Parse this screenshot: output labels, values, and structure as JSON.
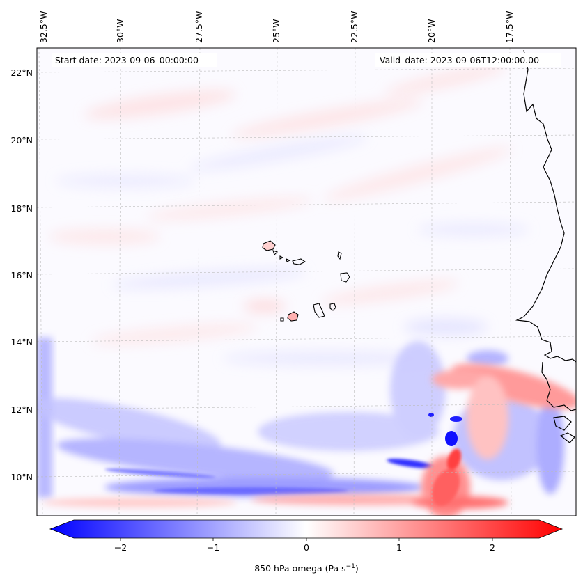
{
  "map": {
    "start_date": "Start date: 2023-09-06_00:00:00",
    "valid_date": "Valid_date: 2023-09-06T12:00:00.00",
    "lon_ticks": [
      "32.5°W",
      "30°W",
      "27.5°W",
      "25°W",
      "22.5°W",
      "20°W",
      "17.5°W"
    ],
    "lat_ticks": [
      "22°N",
      "20°N",
      "18°N",
      "16°N",
      "14°N",
      "12°N",
      "10°N"
    ]
  },
  "colorbar": {
    "label": "850 hPa omega (Pa s",
    "label_sup": "−1",
    "label_end": ")",
    "ticks": [
      "−2",
      "−1",
      "0",
      "1",
      "2"
    ],
    "min_color": "#0000ff",
    "mid_color": "#ffffff",
    "max_color": "#ff0000"
  }
}
